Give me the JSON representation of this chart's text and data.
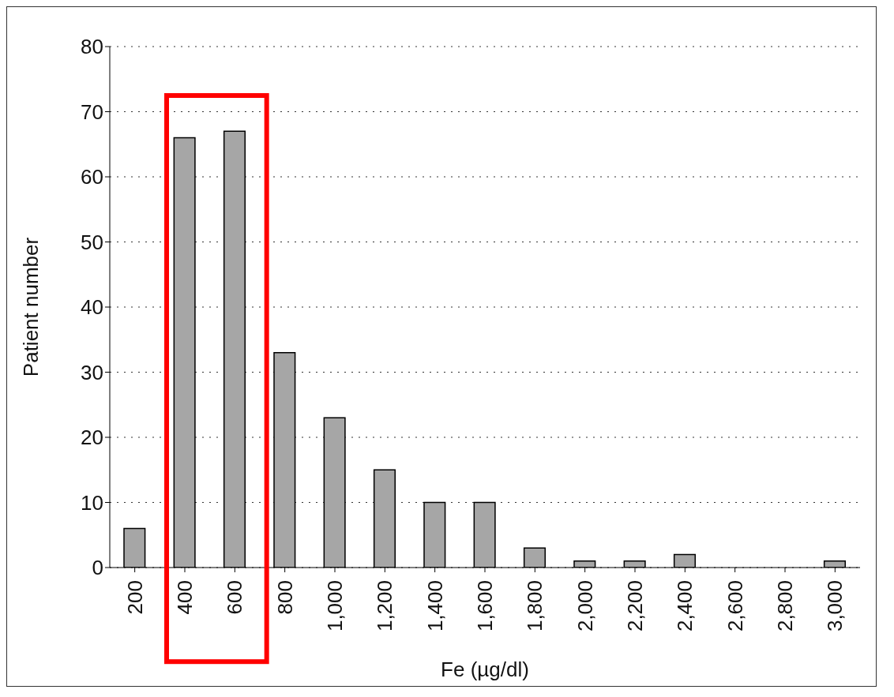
{
  "chart_data": {
    "type": "bar",
    "xlabel": "Fe (µg/dl)",
    "ylabel": "Patient number",
    "categories": [
      "200",
      "400",
      "600",
      "800",
      "1,000",
      "1,200",
      "1,400",
      "1,600",
      "1,800",
      "2,000",
      "2,200",
      "2,400",
      "2,600",
      "2,800",
      "3,000"
    ],
    "values": [
      6,
      66,
      67,
      33,
      23,
      15,
      10,
      10,
      3,
      1,
      1,
      2,
      0,
      0,
      1
    ],
    "color": "#a6a6a6",
    "ylim": [
      0,
      80
    ],
    "yticks": [
      0,
      10,
      20,
      30,
      40,
      50,
      60,
      70,
      80
    ],
    "grid": "y"
  }
}
